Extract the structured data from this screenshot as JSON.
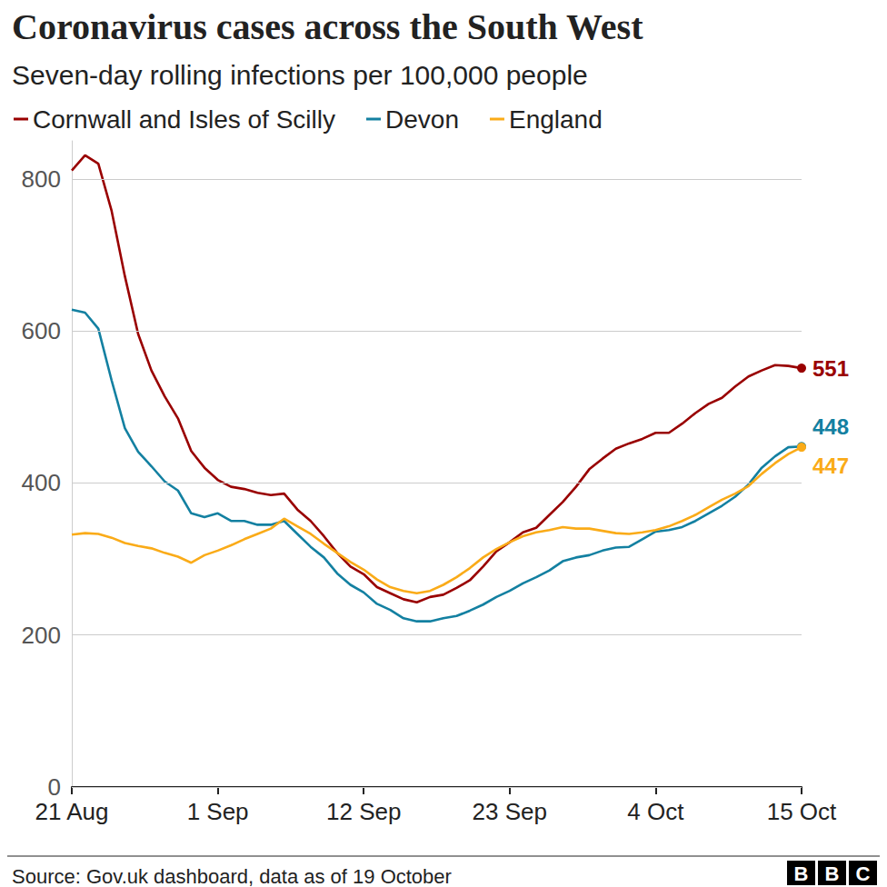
{
  "chart_data": {
    "type": "line",
    "title": "Coronavirus cases across the South West",
    "subtitle": "Seven-day rolling infections per 100,000 people",
    "source": "Source: Gov.uk dashboard, data as of 19 October",
    "logo": "BBC",
    "categories": [
      "21 Aug",
      null,
      null,
      null,
      null,
      null,
      null,
      null,
      null,
      null,
      null,
      "1 Sep",
      null,
      null,
      null,
      null,
      null,
      null,
      null,
      null,
      null,
      null,
      "12 Sep",
      null,
      null,
      null,
      null,
      null,
      null,
      null,
      null,
      null,
      null,
      "23 Sep",
      null,
      null,
      null,
      null,
      null,
      null,
      null,
      null,
      null,
      null,
      "4 Oct",
      null,
      null,
      null,
      null,
      null,
      null,
      null,
      null,
      null,
      null,
      "15 Oct"
    ],
    "series": [
      {
        "name": "Cornwall and Isles of Scilly",
        "color": "#990000",
        "values": [
          811,
          831,
          820,
          758,
          672,
          596,
          548,
          514,
          485,
          442,
          420,
          404,
          395,
          392,
          387,
          384,
          386,
          365,
          350,
          330,
          308,
          290,
          280,
          263,
          255,
          247,
          243,
          250,
          253,
          262,
          272,
          290,
          310,
          322,
          335,
          341,
          358,
          375,
          395,
          418,
          432,
          445,
          452,
          458,
          466,
          466,
          478,
          492,
          504,
          512,
          527,
          540,
          548,
          555,
          554,
          551
        ]
      },
      {
        "name": "Devon",
        "color": "#1380a1",
        "values": [
          628,
          624,
          603,
          535,
          472,
          441,
          422,
          402,
          390,
          360,
          355,
          360,
          350,
          350,
          345,
          345,
          350,
          333,
          316,
          302,
          281,
          266,
          256,
          241,
          233,
          222,
          218,
          218,
          222,
          225,
          232,
          240,
          250,
          258,
          268,
          276,
          285,
          297,
          302,
          305,
          311,
          315,
          316,
          326,
          336,
          338,
          342,
          350,
          360,
          370,
          382,
          398,
          420,
          435,
          447,
          448
        ]
      },
      {
        "name": "England",
        "color": "#faab18",
        "values": [
          332,
          334,
          333,
          328,
          321,
          317,
          314,
          308,
          303,
          295,
          305,
          311,
          318,
          326,
          333,
          340,
          353,
          343,
          333,
          320,
          308,
          296,
          286,
          273,
          263,
          258,
          255,
          258,
          266,
          276,
          288,
          302,
          313,
          322,
          330,
          335,
          338,
          342,
          340,
          340,
          337,
          334,
          333,
          335,
          338,
          343,
          350,
          358,
          368,
          378,
          386,
          396,
          412,
          426,
          438,
          447
        ]
      }
    ],
    "annotations": [
      {
        "series": "Cornwall and Isles of Scilly",
        "x": "15 Oct",
        "text": "551"
      },
      {
        "series": "Devon",
        "x": "15 Oct",
        "text": "448"
      },
      {
        "series": "England",
        "x": "15 Oct",
        "text": "447"
      }
    ],
    "ylim": [
      0,
      850
    ],
    "yticks": [
      0,
      200,
      400,
      600,
      800
    ],
    "grid": true,
    "legend": "top-left"
  }
}
